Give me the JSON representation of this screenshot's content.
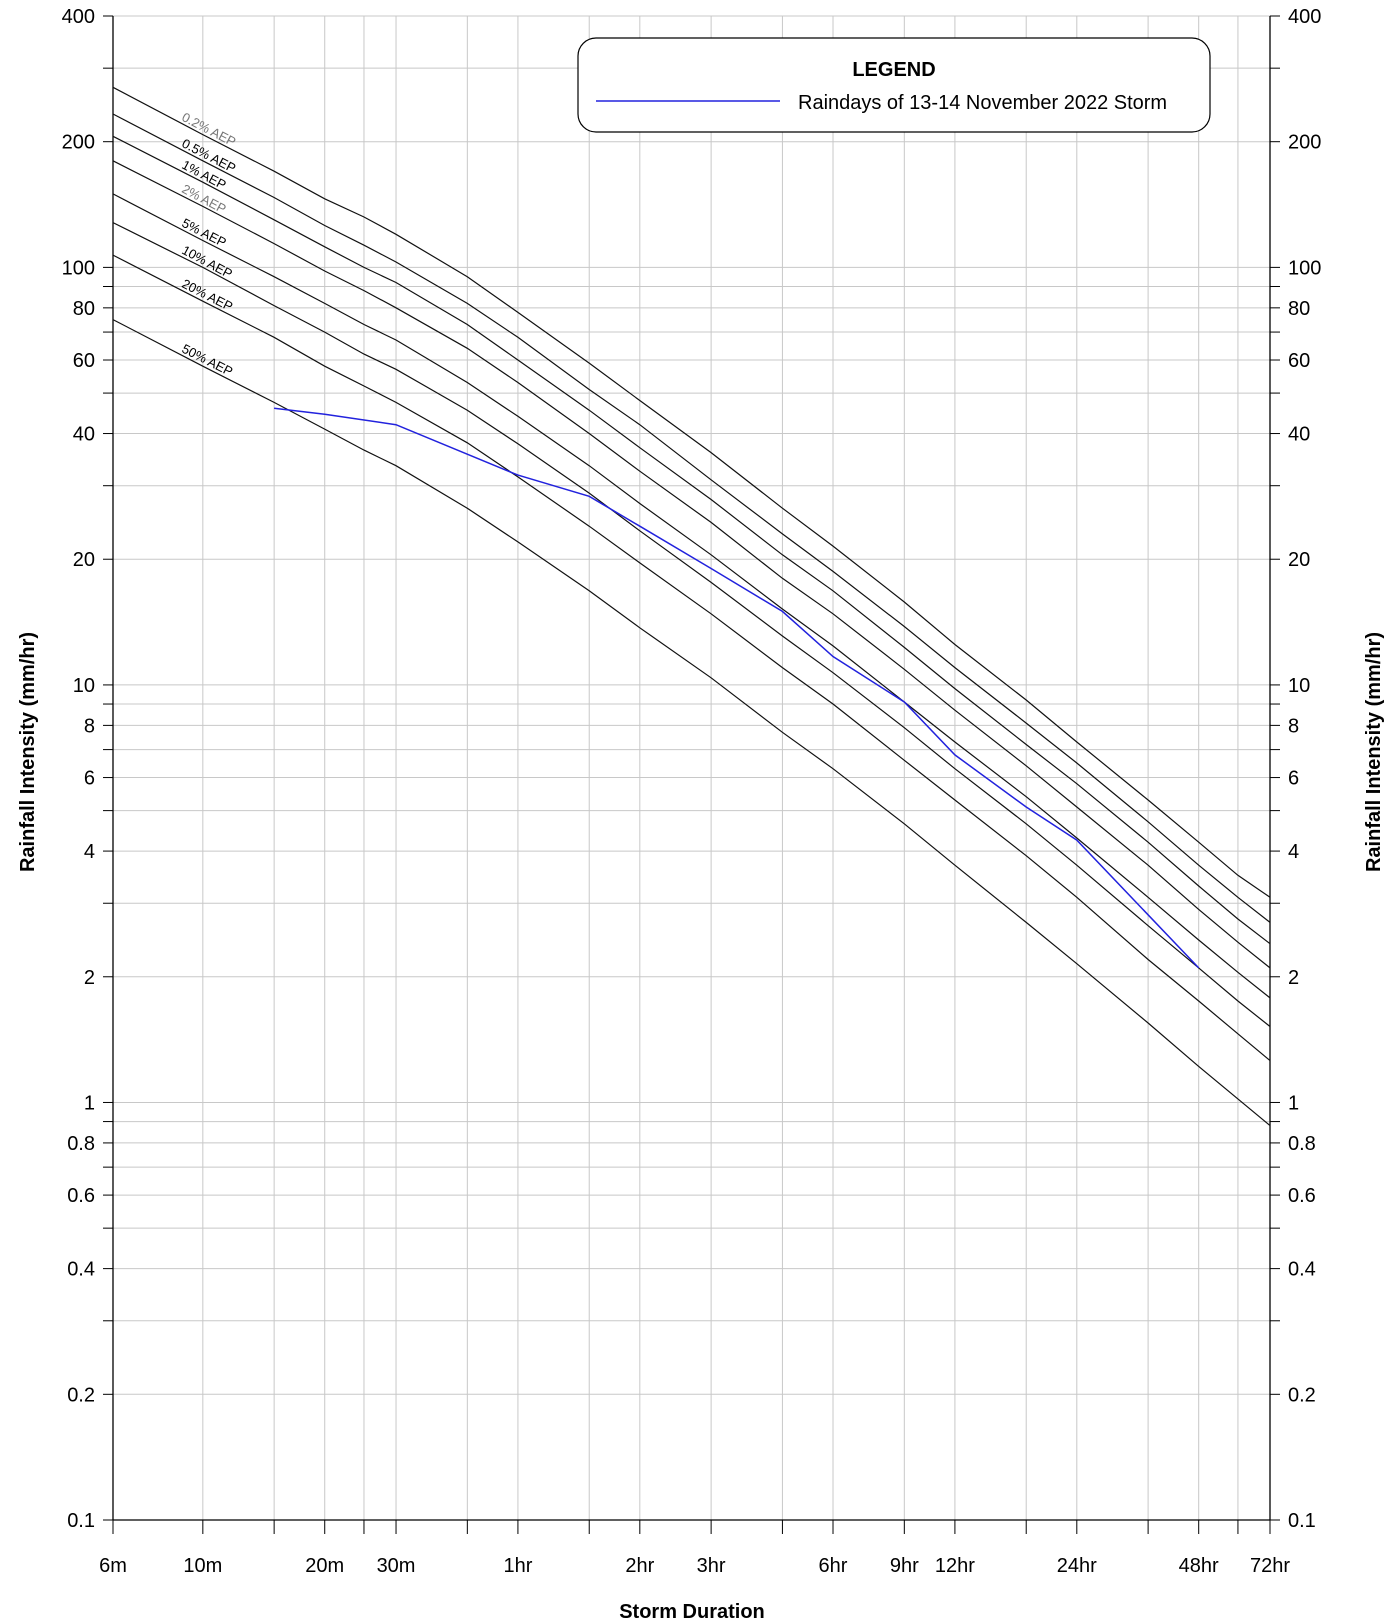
{
  "chart_data": {
    "type": "line",
    "title": "",
    "xlabel": "Storm Duration",
    "ylabel": "Rainfall Intensity (mm/hr)",
    "ylabel_right": "Rainfall Intensity (mm/hr)",
    "y_scale": "log",
    "x_scale": "log",
    "ylim": [
      0.1,
      400
    ],
    "xlim_minutes": [
      6,
      4320
    ],
    "grid": true,
    "x_ticks": [
      {
        "label": "6m",
        "minutes": 6
      },
      {
        "label": "10m",
        "minutes": 10
      },
      {
        "label": "20m",
        "minutes": 20
      },
      {
        "label": "30m",
        "minutes": 30
      },
      {
        "label": "1hr",
        "minutes": 60
      },
      {
        "label": "2hr",
        "minutes": 120
      },
      {
        "label": "3hr",
        "minutes": 180
      },
      {
        "label": "6hr",
        "minutes": 360
      },
      {
        "label": "9hr",
        "minutes": 540
      },
      {
        "label": "12hr",
        "minutes": 720
      },
      {
        "label": "24hr",
        "minutes": 1440
      },
      {
        "label": "48hr",
        "minutes": 2880
      },
      {
        "label": "72hr",
        "minutes": 4320
      }
    ],
    "x_grid_minutes": [
      6,
      10,
      15,
      20,
      25,
      30,
      45,
      60,
      90,
      120,
      180,
      270,
      360,
      540,
      720,
      1080,
      1440,
      2160,
      2880,
      3600,
      4320
    ],
    "y_ticks": [
      {
        "label": "0.1",
        "value": 0.1
      },
      {
        "label": "0.2",
        "value": 0.2
      },
      {
        "label": "0.4",
        "value": 0.4
      },
      {
        "label": "0.6",
        "value": 0.6
      },
      {
        "label": "0.8",
        "value": 0.8
      },
      {
        "label": "1",
        "value": 1
      },
      {
        "label": "2",
        "value": 2
      },
      {
        "label": "4",
        "value": 4
      },
      {
        "label": "6",
        "value": 6
      },
      {
        "label": "8",
        "value": 8
      },
      {
        "label": "10",
        "value": 10
      },
      {
        "label": "20",
        "value": 20
      },
      {
        "label": "40",
        "value": 40
      },
      {
        "label": "60",
        "value": 60
      },
      {
        "label": "80",
        "value": 80
      },
      {
        "label": "100",
        "value": 100
      },
      {
        "label": "200",
        "value": 200
      },
      {
        "label": "400",
        "value": 400
      }
    ],
    "y_grid": [
      0.1,
      0.2,
      0.3,
      0.4,
      0.5,
      0.6,
      0.7,
      0.8,
      0.9,
      1,
      2,
      3,
      4,
      5,
      6,
      7,
      8,
      9,
      10,
      20,
      30,
      40,
      50,
      60,
      70,
      80,
      90,
      100,
      200,
      300,
      400
    ],
    "x_minutes": [
      6,
      10,
      15,
      20,
      25,
      30,
      45,
      60,
      90,
      120,
      180,
      270,
      360,
      540,
      720,
      1080,
      1440,
      2160,
      2880,
      3600,
      4320
    ],
    "aep_series": [
      {
        "name": "0.2% AEP",
        "label_color": "#777777",
        "values": [
          270,
          208,
          170,
          146,
          132,
          120,
          95,
          78,
          59,
          48,
          36,
          26.5,
          21.5,
          15.8,
          12.5,
          9.2,
          7.3,
          5.3,
          4.2,
          3.5,
          3.1
        ]
      },
      {
        "name": "0.5% AEP",
        "label_color": "#000000",
        "values": [
          233,
          180,
          147,
          126,
          113,
          103,
          82,
          68,
          51,
          42,
          31,
          23,
          18.7,
          13.8,
          11,
          8.1,
          6.5,
          4.7,
          3.7,
          3.1,
          2.7
        ]
      },
      {
        "name": "1% AEP",
        "label_color": "#000000",
        "values": [
          206,
          160,
          130,
          112,
          100,
          92,
          73,
          60,
          45.5,
          37,
          27.8,
          20.5,
          16.8,
          12.3,
          9.8,
          7.2,
          5.8,
          4.2,
          3.3,
          2.75,
          2.4
        ]
      },
      {
        "name": "2% AEP",
        "label_color": "#777777",
        "values": [
          180,
          140,
          114,
          98,
          88,
          80,
          64,
          53,
          40,
          32.5,
          24.5,
          18,
          14.8,
          10.9,
          8.7,
          6.4,
          5.1,
          3.7,
          2.9,
          2.42,
          2.1
        ]
      },
      {
        "name": "5% AEP",
        "label_color": "#000000",
        "values": [
          150,
          116,
          95,
          82,
          73,
          67,
          53,
          44,
          33.5,
          27.2,
          20.5,
          15.2,
          12.4,
          9.1,
          7.3,
          5.4,
          4.3,
          3.1,
          2.45,
          2.05,
          1.78
        ]
      },
      {
        "name": "10% AEP",
        "label_color": "#000000",
        "values": [
          128,
          100,
          81,
          70,
          62,
          57,
          45.5,
          37.8,
          28.8,
          23.4,
          17.6,
          13.1,
          10.7,
          7.9,
          6.3,
          4.65,
          3.7,
          2.65,
          2.1,
          1.75,
          1.52
        ]
      },
      {
        "name": "20% AEP",
        "label_color": "#000000",
        "values": [
          107,
          83,
          68,
          58,
          52,
          47.5,
          38,
          31.5,
          24,
          19.6,
          14.8,
          11,
          9,
          6.6,
          5.3,
          3.9,
          3.1,
          2.2,
          1.75,
          1.46,
          1.26
        ]
      },
      {
        "name": "50% AEP",
        "label_color": "#000000",
        "values": [
          75,
          58,
          47.5,
          41,
          36.5,
          33.5,
          26.5,
          22,
          16.8,
          13.7,
          10.4,
          7.7,
          6.3,
          4.65,
          3.7,
          2.7,
          2.15,
          1.55,
          1.22,
          1.02,
          0.88
        ]
      }
    ],
    "storm_series": {
      "name": "Raindays of 13-14 November 2022 Storm",
      "color": "#2222dd",
      "minutes": [
        15,
        20,
        30,
        60,
        90,
        120,
        180,
        270,
        360,
        540,
        720,
        1080,
        1440,
        2880
      ],
      "values": [
        46,
        44.5,
        42,
        31.8,
        28.3,
        24,
        19,
        15,
        11.7,
        9.1,
        6.8,
        5.1,
        4.25,
        2.1
      ]
    }
  },
  "legend": {
    "title": "LEGEND",
    "entries": [
      {
        "label": "Raindays of 13-14 November 2022 Storm",
        "color": "#2222dd"
      }
    ]
  }
}
